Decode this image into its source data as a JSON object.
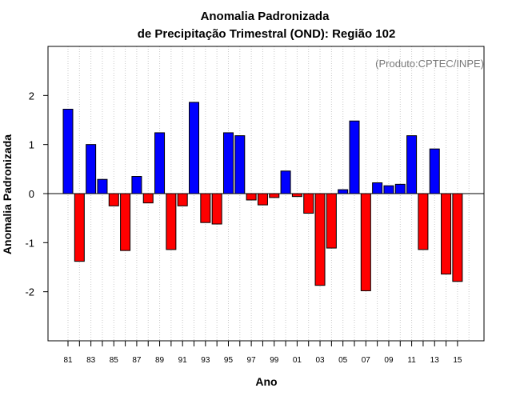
{
  "chart_data": {
    "type": "bar",
    "title": "Anomalia Padronizada",
    "subtitle": "de Precipitação Trimestral (OND): Região 102",
    "credit": "(Produto:CPTEC/INPE)",
    "xlabel": "Ano",
    "ylabel": "Anomalia Padronizada",
    "ylim": [
      -3,
      3
    ],
    "yticks": [
      -2,
      -1,
      0,
      1,
      2
    ],
    "ytick_labels": [
      "-2",
      "-1",
      "0",
      "1",
      "2"
    ],
    "xtick_labels": [
      "81",
      "83",
      "85",
      "87",
      "89",
      "91",
      "93",
      "95",
      "97",
      "99",
      "01",
      "03",
      "05",
      "07",
      "09",
      "11",
      "13",
      "15"
    ],
    "categories": [
      "1981",
      "1982",
      "1983",
      "1984",
      "1985",
      "1986",
      "1987",
      "1988",
      "1989",
      "1990",
      "1991",
      "1992",
      "1993",
      "1994",
      "1995",
      "1996",
      "1997",
      "1998",
      "1999",
      "2000",
      "2001",
      "2002",
      "2003",
      "2004",
      "2005",
      "2006",
      "2007",
      "2008",
      "2009",
      "2010",
      "2011",
      "2012",
      "2013",
      "2014",
      "2015"
    ],
    "values": [
      1.72,
      -1.38,
      1.0,
      0.29,
      -0.25,
      -1.16,
      0.35,
      -0.19,
      1.24,
      -1.14,
      -0.25,
      1.86,
      -0.59,
      -0.62,
      1.24,
      1.18,
      -0.13,
      -0.23,
      -0.08,
      0.46,
      -0.06,
      -0.4,
      -1.87,
      -1.11,
      0.08,
      1.48,
      -1.98,
      0.22,
      0.16,
      0.19,
      1.18,
      -1.14,
      0.91,
      -1.64,
      -1.79
    ],
    "positive_color": "#0000ff",
    "negative_color": "#ff0000",
    "grid": true
  }
}
